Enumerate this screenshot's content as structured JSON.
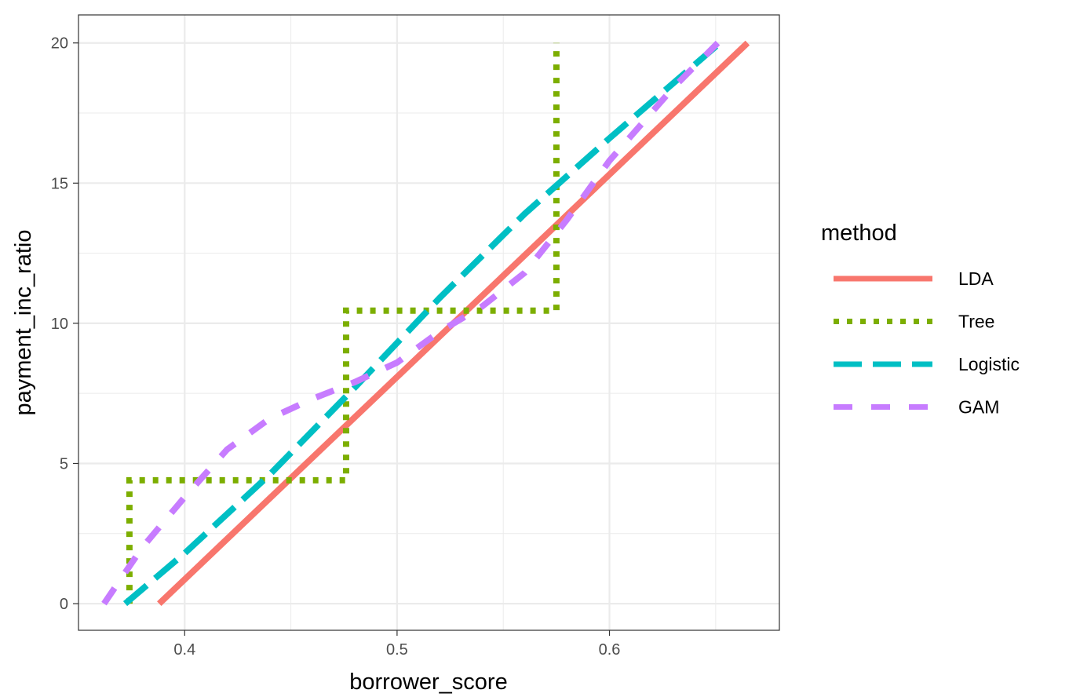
{
  "chart_data": {
    "type": "line",
    "xlabel": "borrower_score",
    "ylabel": "payment_inc_ratio",
    "xlim": [
      0.35,
      0.68
    ],
    "ylim": [
      -0.95,
      21.0
    ],
    "x_ticks": [
      0.4,
      0.5,
      0.6
    ],
    "y_ticks": [
      0,
      5,
      10,
      15,
      20
    ],
    "x_tick_labels": [
      "0.4",
      "0.5",
      "0.6"
    ],
    "y_tick_labels": [
      "0",
      "5",
      "10",
      "15",
      "20"
    ],
    "grid": true,
    "legend": {
      "title": "method",
      "placement": "right"
    },
    "series": [
      {
        "name": "LDA",
        "color": "#F8766D",
        "dash": "solid",
        "points": [
          [
            0.388,
            0.0
          ],
          [
            0.665,
            20.0
          ]
        ]
      },
      {
        "name": "Tree",
        "color": "#7CAE00",
        "dash": "dotted",
        "points": [
          [
            0.374,
            0.0
          ],
          [
            0.374,
            4.4
          ],
          [
            0.476,
            4.4
          ],
          [
            0.476,
            10.45
          ],
          [
            0.575,
            10.45
          ],
          [
            0.575,
            20.0
          ]
        ]
      },
      {
        "name": "Logistic",
        "color": "#00BFC4",
        "dash": "longdash",
        "points": [
          [
            0.372,
            0.0
          ],
          [
            0.4,
            1.8
          ],
          [
            0.44,
            4.6
          ],
          [
            0.48,
            7.7
          ],
          [
            0.52,
            10.9
          ],
          [
            0.56,
            13.9
          ],
          [
            0.6,
            16.6
          ],
          [
            0.652,
            20.0
          ]
        ]
      },
      {
        "name": "GAM",
        "color": "#C77CFF",
        "dash": "dashed",
        "points": [
          [
            0.362,
            0.0
          ],
          [
            0.38,
            2.0
          ],
          [
            0.4,
            3.8
          ],
          [
            0.42,
            5.5
          ],
          [
            0.44,
            6.6
          ],
          [
            0.46,
            7.3
          ],
          [
            0.48,
            7.9
          ],
          [
            0.5,
            8.6
          ],
          [
            0.52,
            9.7
          ],
          [
            0.54,
            10.6
          ],
          [
            0.56,
            11.8
          ],
          [
            0.58,
            13.7
          ],
          [
            0.6,
            15.8
          ],
          [
            0.63,
            18.4
          ],
          [
            0.651,
            20.0
          ]
        ]
      }
    ]
  }
}
